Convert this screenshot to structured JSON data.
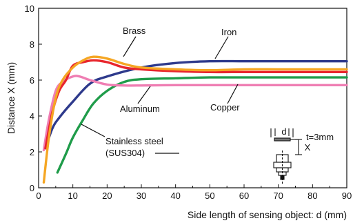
{
  "chart_data": {
    "type": "line",
    "xlabel": "Side length of sensing object: d (mm)",
    "ylabel": "Distance X (mm)",
    "xlim": [
      0,
      90
    ],
    "ylim": [
      0,
      10
    ],
    "xticks": [
      0,
      10,
      20,
      30,
      40,
      50,
      60,
      70,
      80,
      90
    ],
    "yticks": [
      0,
      2,
      4,
      6,
      8,
      10
    ],
    "grid": false,
    "series": [
      {
        "name": "Iron",
        "color": "#2e3a8c",
        "x": [
          2,
          4,
          6,
          10,
          15,
          20,
          30,
          40,
          50,
          60,
          70,
          80,
          90
        ],
        "y": [
          2.2,
          3.3,
          3.9,
          4.8,
          5.8,
          6.2,
          6.7,
          6.95,
          7.05,
          7.05,
          7.05,
          7.05,
          7.05
        ]
      },
      {
        "name": "Brass",
        "color": "#f5a623",
        "x": [
          1.5,
          3,
          5,
          7,
          10,
          13,
          16,
          20,
          25,
          30,
          40,
          50,
          60,
          70,
          80,
          90
        ],
        "y": [
          0.3,
          2.8,
          5.0,
          6.0,
          6.7,
          7.1,
          7.3,
          7.2,
          6.9,
          6.7,
          6.6,
          6.55,
          6.6,
          6.6,
          6.6,
          6.6
        ]
      },
      {
        "name": "Aluminum",
        "color": "#e8262d",
        "x": [
          2,
          4,
          6,
          8,
          10,
          13,
          16,
          20,
          25,
          30,
          40,
          50,
          60,
          70,
          80,
          90
        ],
        "y": [
          2.2,
          4.2,
          5.4,
          6.0,
          6.8,
          7.0,
          7.1,
          7.0,
          6.7,
          6.6,
          6.5,
          6.45,
          6.45,
          6.45,
          6.45,
          6.45
        ]
      },
      {
        "name": "Copper",
        "color": "#ef7eb3",
        "x": [
          1.5,
          3,
          5,
          7,
          10,
          12,
          15,
          20,
          25,
          30,
          40,
          50,
          60,
          70,
          80,
          90
        ],
        "y": [
          2.1,
          3.8,
          5.4,
          5.9,
          6.2,
          6.2,
          6.0,
          5.75,
          5.7,
          5.7,
          5.72,
          5.72,
          5.72,
          5.72,
          5.72,
          5.72
        ]
      },
      {
        "name": "Stainless steel (SUS304)",
        "color": "#1f9c4a",
        "x": [
          5.5,
          8,
          10,
          13,
          16,
          20,
          25,
          30,
          40,
          50,
          60,
          70,
          80,
          90
        ],
        "y": [
          0.85,
          1.9,
          2.8,
          3.8,
          4.7,
          5.4,
          5.9,
          6.05,
          6.1,
          6.15,
          6.15,
          6.15,
          6.15,
          6.15
        ]
      }
    ],
    "annotations": {
      "brass": "Brass",
      "iron": "Iron",
      "aluminum": "Aluminum",
      "copper": "Copper",
      "stainless_line1": "Stainless steel",
      "stainless_line2": "(SUS304)"
    },
    "inset": {
      "d_label": "d",
      "x_label": "X",
      "thickness_label": "t=3mm"
    }
  }
}
